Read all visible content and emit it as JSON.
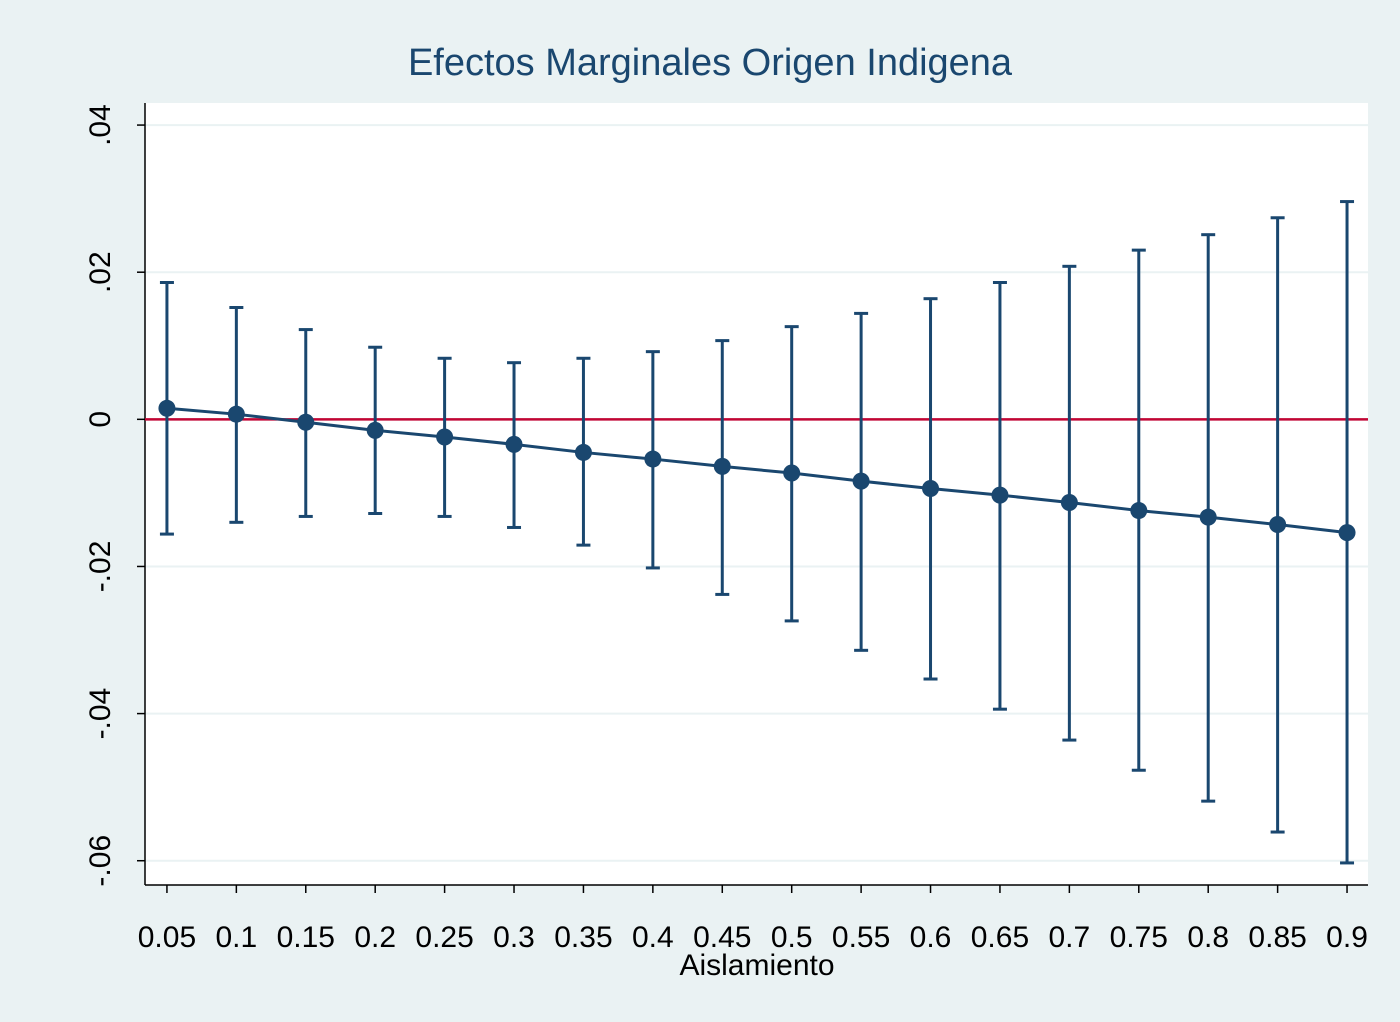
{
  "chart_data": {
    "type": "errorbar-line",
    "title": "Efectos Marginales Origen Indigena",
    "x_label": "Aislamiento",
    "x": [
      0.05,
      0.1,
      0.15,
      0.2,
      0.25,
      0.3,
      0.35,
      0.4,
      0.45,
      0.5,
      0.55,
      0.6,
      0.65,
      0.7,
      0.75,
      0.8,
      0.85,
      0.9
    ],
    "series": [
      {
        "color": "#1a476f",
        "values": [
          0.0015,
          0.0007,
          -0.0004,
          -0.0015,
          -0.0024,
          -0.0034,
          -0.0045,
          -0.0054,
          -0.0064,
          -0.0073,
          -0.0084,
          -0.0094,
          -0.0103,
          -0.0113,
          -0.0124,
          -0.0133,
          -0.0143,
          -0.0154
        ],
        "upper": [
          0.0186,
          0.0152,
          0.0122,
          0.0098,
          0.0083,
          0.0077,
          0.0083,
          0.0092,
          0.0107,
          0.0126,
          0.0144,
          0.0164,
          0.0186,
          0.0208,
          0.023,
          0.0251,
          0.0274,
          0.0296
        ],
        "lower": [
          -0.0156,
          -0.014,
          -0.0132,
          -0.0128,
          -0.0132,
          -0.0147,
          -0.0171,
          -0.0202,
          -0.0238,
          -0.0274,
          -0.0314,
          -0.0353,
          -0.0394,
          -0.0436,
          -0.0477,
          -0.0519,
          -0.0561,
          -0.0603
        ]
      }
    ],
    "xlim": [
      0.0342,
      0.9151
    ],
    "xticks": [
      0.05,
      0.1,
      0.15,
      0.2,
      0.25,
      0.3,
      0.35,
      0.4,
      0.45,
      0.5,
      0.55,
      0.6,
      0.65,
      0.7,
      0.75,
      0.8,
      0.85,
      0.9
    ],
    "ylim": [
      -0.0633,
      0.043
    ],
    "yticks": [
      {
        "value": -0.06,
        "label": "-.06"
      },
      {
        "value": -0.04,
        "label": "-.04"
      },
      {
        "value": -0.02,
        "label": "-.02"
      },
      0,
      {
        "value": 0.02,
        "label": ".02"
      },
      {
        "value": 0.04,
        "label": ".04"
      }
    ],
    "grid": true,
    "reference_line": {
      "value": 0,
      "color": "#c10534"
    }
  }
}
